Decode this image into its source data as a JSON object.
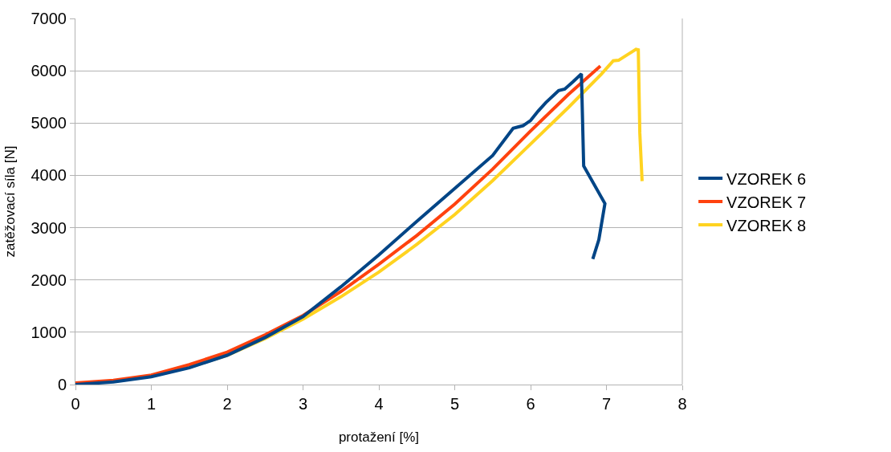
{
  "chart_data": {
    "type": "line",
    "xlabel": "protažení [%]",
    "ylabel": "zatěžovací síla [N]",
    "xlim": [
      0,
      8
    ],
    "xticks": [
      0,
      1,
      2,
      3,
      4,
      5,
      6,
      7,
      8
    ],
    "ylim": [
      0,
      7000
    ],
    "yticks": [
      0,
      1000,
      2000,
      3000,
      4000,
      5000,
      6000,
      7000
    ],
    "grid": "y",
    "legend": "right",
    "marker": "none",
    "line_style": "solid",
    "series": [
      {
        "name": "VZOREK 6",
        "color": "#004586",
        "x": [
          0,
          0.5,
          1,
          1.5,
          2,
          2.5,
          3,
          3.5,
          4,
          4.5,
          5,
          5.5,
          5.77,
          5.9,
          6.0,
          6.1,
          6.2,
          6.37,
          6.45,
          6.56,
          6.67,
          6.7,
          6.98,
          6.9,
          6.82
        ],
        "values": [
          0,
          50,
          150,
          320,
          560,
          900,
          1300,
          1870,
          2480,
          3120,
          3750,
          4380,
          4900,
          4950,
          5050,
          5230,
          5390,
          5620,
          5650,
          5790,
          5940,
          4180,
          3460,
          2770,
          2400
        ]
      },
      {
        "name": "VZOREK 7",
        "color": "#ff420e",
        "x": [
          0,
          0.5,
          1,
          1.5,
          2,
          2.5,
          3,
          3.5,
          4,
          4.5,
          5,
          5.5,
          6,
          6.5,
          6.92
        ],
        "values": [
          30,
          80,
          180,
          380,
          620,
          950,
          1320,
          1780,
          2300,
          2850,
          3450,
          4120,
          4850,
          5550,
          6090
        ]
      },
      {
        "name": "VZOREK 8",
        "color": "#ffd320",
        "x": [
          1.5,
          2,
          2.5,
          3,
          3.5,
          4,
          4.5,
          5,
          5.5,
          6,
          6.5,
          6.93,
          7.09,
          7.16,
          7.39,
          7.42,
          7.44,
          7.47
        ],
        "values": [
          330,
          560,
          880,
          1250,
          1680,
          2150,
          2680,
          3250,
          3900,
          4600,
          5300,
          5930,
          6190,
          6200,
          6410,
          6400,
          4810,
          3890
        ]
      }
    ]
  }
}
